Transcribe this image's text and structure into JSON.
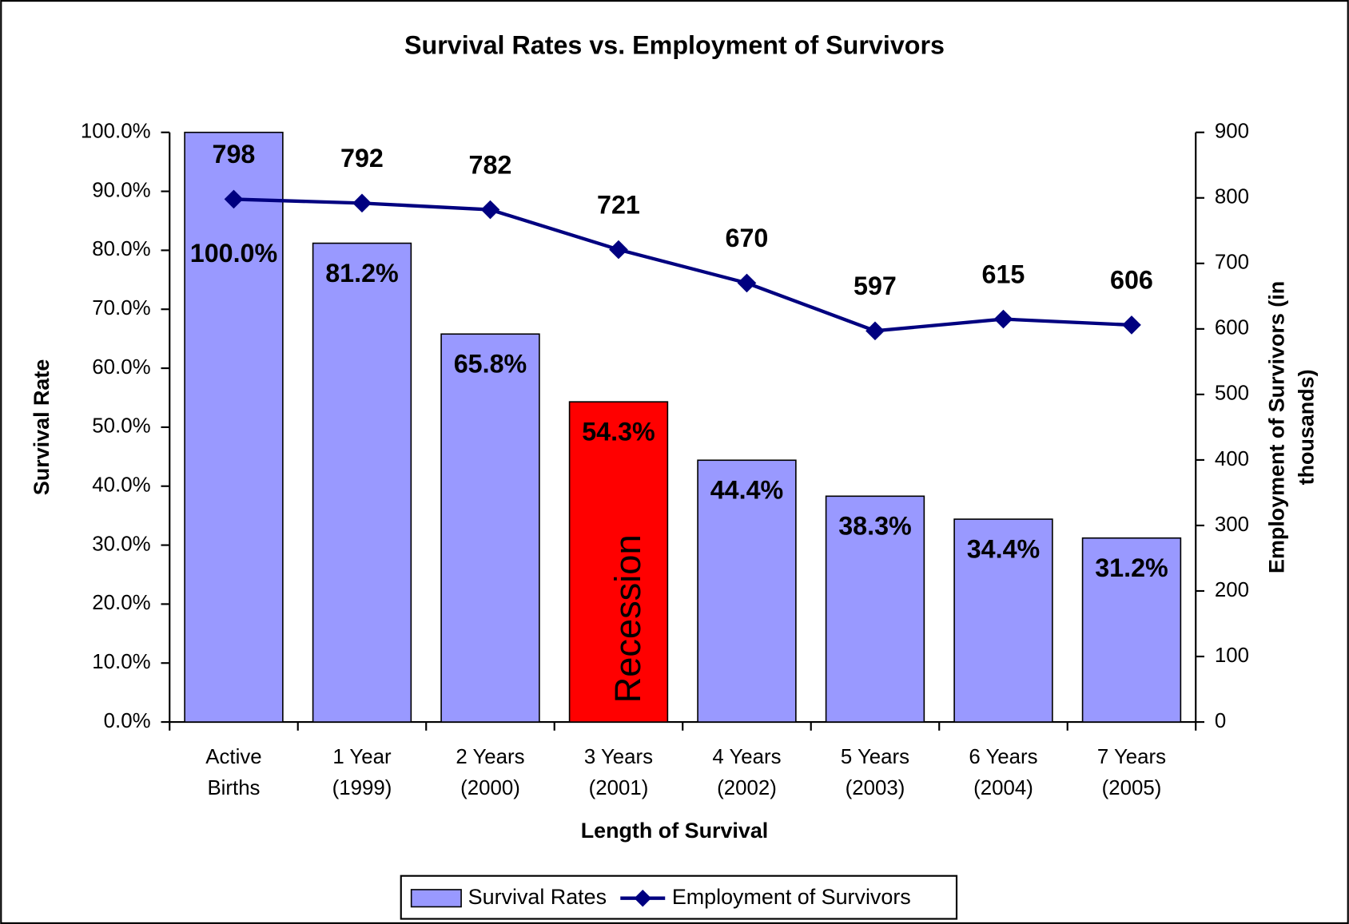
{
  "chart_data": {
    "type": "bar_line",
    "title": "Survival Rates vs. Employment of Survivors",
    "xlabel": "Length of Survival",
    "ylabel": "Survival Rate",
    "y2label": [
      "Employment of Survivors (in",
      "thousands)"
    ],
    "categories": [
      [
        "Active",
        "Births"
      ],
      [
        "1 Year",
        "(1999)"
      ],
      [
        "2 Years",
        "(2000)"
      ],
      [
        "3 Years",
        "(2001)"
      ],
      [
        "4 Years",
        "(2002)"
      ],
      [
        "5 Years",
        "(2003)"
      ],
      [
        "6 Years",
        "(2004)"
      ],
      [
        "7 Years",
        "(2005)"
      ]
    ],
    "series": [
      {
        "name": "Survival Rates",
        "type": "bar",
        "color": "#9999ff",
        "colors": [
          "#9999ff",
          "#9999ff",
          "#9999ff",
          "#ff0000",
          "#9999ff",
          "#9999ff",
          "#9999ff",
          "#9999ff"
        ],
        "values": [
          100,
          81.2,
          65.8,
          54.3,
          44.4,
          38.3,
          34.4,
          31.2
        ],
        "value_labels": [
          "100.0%",
          "81.2%",
          "65.8%",
          "54.3%",
          "44.4%",
          "38.3%",
          "34.4%",
          "31.2%"
        ]
      },
      {
        "name": "Employment of Survivors",
        "type": "line",
        "axis": "y2",
        "color": "#000080",
        "values": [
          798,
          792,
          782,
          721,
          670,
          597,
          615,
          606
        ]
      }
    ],
    "annotations": [
      {
        "text": "Recession",
        "category": 3
      }
    ],
    "ylim": [
      0,
      100
    ],
    "yticks": [
      {
        "value": 0,
        "label": "0.0%"
      },
      {
        "value": 10,
        "label": "10.0%"
      },
      {
        "value": 20,
        "label": "20.0%"
      },
      {
        "value": 30,
        "label": "30.0%"
      },
      {
        "value": 40,
        "label": "40.0%"
      },
      {
        "value": 50,
        "label": "50.0%"
      },
      {
        "value": 60,
        "label": "60.0%"
      },
      {
        "value": 70,
        "label": "70.0%"
      },
      {
        "value": 80,
        "label": "80.0%"
      },
      {
        "value": 90,
        "label": "90.0%"
      },
      {
        "value": 100,
        "label": "100.0%"
      }
    ],
    "y2lim": [
      0,
      900
    ],
    "y2ticks": [
      0,
      100,
      200,
      300,
      400,
      500,
      600,
      700,
      800,
      900
    ],
    "grid": false,
    "legend": "bottom"
  }
}
